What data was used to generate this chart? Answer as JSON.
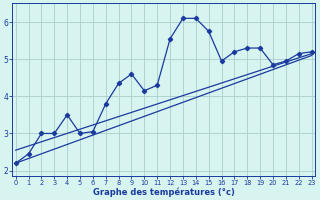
{
  "xlabel": "Graphe des températures (°c)",
  "hours": [
    0,
    1,
    2,
    3,
    4,
    5,
    6,
    7,
    8,
    9,
    10,
    11,
    12,
    13,
    14,
    15,
    16,
    17,
    18,
    19,
    20,
    21,
    22,
    23
  ],
  "temp_line": [
    2.2,
    2.45,
    3.0,
    3.0,
    3.5,
    3.0,
    3.05,
    3.8,
    4.35,
    4.6,
    4.15,
    4.3,
    5.55,
    6.1,
    6.1,
    5.75,
    4.95,
    5.2,
    5.3,
    5.3,
    4.85,
    4.95,
    5.15,
    5.2
  ],
  "trend_line1_x": [
    0,
    23
  ],
  "trend_line1_y": [
    2.55,
    5.15
  ],
  "trend_line2_x": [
    0,
    23
  ],
  "trend_line2_y": [
    2.2,
    5.1
  ],
  "line_color": "#1a3a9e",
  "bg_color": "#d8f4f0",
  "grid_color": "#aacece",
  "ylim": [
    1.85,
    6.5
  ],
  "xlim": [
    -0.3,
    23.3
  ],
  "yticks": [
    2,
    3,
    4,
    5,
    6
  ],
  "xticks": [
    0,
    1,
    2,
    3,
    4,
    5,
    6,
    7,
    8,
    9,
    10,
    11,
    12,
    13,
    14,
    15,
    16,
    17,
    18,
    19,
    20,
    21,
    22,
    23
  ]
}
